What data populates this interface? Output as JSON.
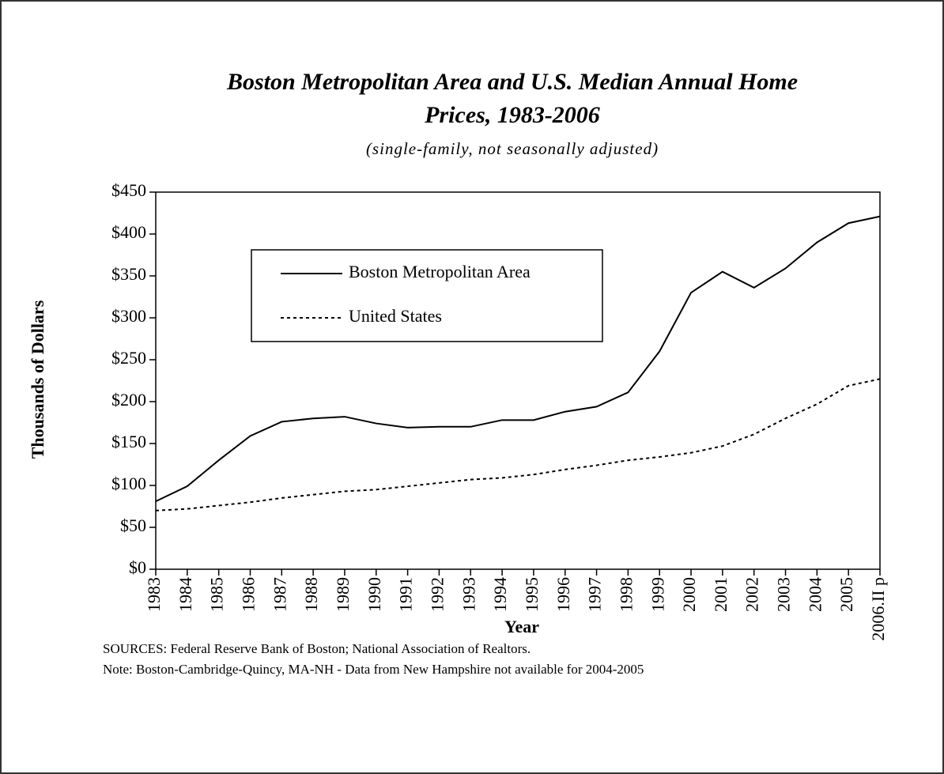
{
  "chart_data": {
    "type": "line",
    "title": "Boston Metropolitan Area and U.S. Median Annual Home Prices, 1983-2006",
    "subtitle": "(single-family, not seasonally adjusted)",
    "x_label": "Year",
    "y_label": "Thousands of Dollars",
    "categories": [
      "1983",
      "1984",
      "1985",
      "1986",
      "1987",
      "1988",
      "1989",
      "1990",
      "1991",
      "1992",
      "1993",
      "1994",
      "1995",
      "1996",
      "1997",
      "1998",
      "1999",
      "2000",
      "2001",
      "2002",
      "2003",
      "2004",
      "2005",
      "2006.II p"
    ],
    "series": [
      {
        "name": "Boston Metropolitan Area",
        "color": "#000000",
        "line_style": "solid",
        "values": [
          81,
          99,
          130,
          159,
          176,
          180,
          182,
          174,
          169,
          170,
          170,
          178,
          178,
          188,
          194,
          211,
          260,
          330,
          355,
          336,
          359,
          390,
          413,
          421
        ]
      },
      {
        "name": "United States",
        "color": "#000000",
        "line_style": "dotted",
        "values": [
          70,
          72,
          76,
          80,
          85,
          89,
          93,
          95,
          99,
          103,
          107,
          109,
          113,
          119,
          124,
          130,
          134,
          139,
          147,
          161,
          180,
          197,
          219,
          227
        ]
      }
    ],
    "ylim": [
      0,
      450
    ],
    "yticks": [
      {
        "value": 0,
        "label": "$0"
      },
      {
        "value": 50,
        "label": "$50"
      },
      {
        "value": 100,
        "label": "$100"
      },
      {
        "value": 150,
        "label": "$150"
      },
      {
        "value": 200,
        "label": "$200"
      },
      {
        "value": 250,
        "label": "$250"
      },
      {
        "value": 300,
        "label": "$300"
      },
      {
        "value": 350,
        "label": "$350"
      },
      {
        "value": 400,
        "label": "$400"
      },
      {
        "value": 450,
        "label": "$450"
      }
    ],
    "grid": false,
    "sources": "SOURCES:   Federal Reserve Bank of Boston; National Association of Realtors.",
    "note": "Note: Boston-Cambridge-Quincy, MA-NH - Data from New Hampshire not available for 2004-2005"
  }
}
